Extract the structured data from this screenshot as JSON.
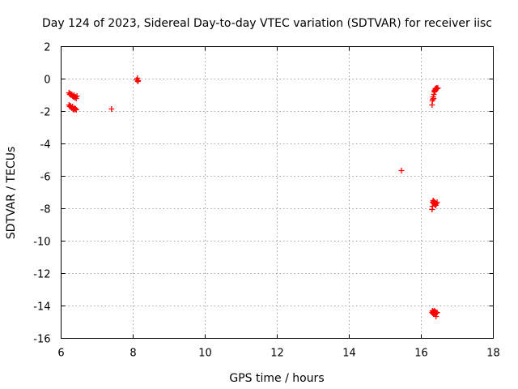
{
  "chart_data": {
    "type": "scatter",
    "title": "Day 124 of 2023, Sidereal Day-to-day VTEC variation (SDTVAR) for receiver iisc",
    "xlabel": "GPS time / hours",
    "ylabel": "SDTVAR / TECUs",
    "xlim": [
      6,
      18
    ],
    "ylim": [
      -16,
      2
    ],
    "xticks": [
      6,
      8,
      10,
      12,
      14,
      16,
      18
    ],
    "yticks": [
      2,
      0,
      -2,
      -4,
      -6,
      -8,
      -10,
      -12,
      -14,
      -16
    ],
    "grid": true,
    "marker": "+",
    "series": [
      {
        "color": "#ff0000",
        "points": [
          [
            6.22,
            -0.85
          ],
          [
            6.24,
            -0.95
          ],
          [
            6.26,
            -0.9
          ],
          [
            6.28,
            -1.0
          ],
          [
            6.3,
            -0.95
          ],
          [
            6.32,
            -1.05
          ],
          [
            6.34,
            -1.1
          ],
          [
            6.36,
            -1.0
          ],
          [
            6.38,
            -1.15
          ],
          [
            6.4,
            -1.1
          ],
          [
            6.42,
            -1.2
          ],
          [
            6.44,
            -1.05
          ],
          [
            6.22,
            -1.6
          ],
          [
            6.24,
            -1.7
          ],
          [
            6.26,
            -1.65
          ],
          [
            6.28,
            -1.75
          ],
          [
            6.3,
            -1.8
          ],
          [
            6.32,
            -1.7
          ],
          [
            6.34,
            -1.85
          ],
          [
            6.36,
            -1.9
          ],
          [
            6.38,
            -1.8
          ],
          [
            6.4,
            -1.85
          ],
          [
            6.42,
            -1.9
          ],
          [
            7.4,
            -1.85
          ],
          [
            8.1,
            -0.05
          ],
          [
            8.12,
            0.05
          ],
          [
            8.14,
            -0.1
          ],
          [
            8.13,
            -0.15
          ],
          [
            15.45,
            -5.65
          ],
          [
            16.3,
            -1.6
          ],
          [
            16.31,
            -1.35
          ],
          [
            16.32,
            -1.25
          ],
          [
            16.33,
            -1.1
          ],
          [
            16.34,
            -1.2
          ],
          [
            16.35,
            -0.95
          ],
          [
            16.36,
            -0.8
          ],
          [
            16.37,
            -0.7
          ],
          [
            16.38,
            -0.75
          ],
          [
            16.39,
            -0.6
          ],
          [
            16.4,
            -0.65
          ],
          [
            16.42,
            -0.55
          ],
          [
            16.44,
            -0.6
          ],
          [
            16.46,
            -0.55
          ],
          [
            16.3,
            -8.05
          ],
          [
            16.31,
            -7.85
          ],
          [
            16.32,
            -7.6
          ],
          [
            16.33,
            -7.5
          ],
          [
            16.34,
            -7.65
          ],
          [
            16.35,
            -7.55
          ],
          [
            16.36,
            -7.7
          ],
          [
            16.37,
            -7.6
          ],
          [
            16.38,
            -7.75
          ],
          [
            16.39,
            -7.65
          ],
          [
            16.4,
            -7.8
          ],
          [
            16.42,
            -7.7
          ],
          [
            16.44,
            -7.6
          ],
          [
            16.3,
            -14.4
          ],
          [
            16.31,
            -14.3
          ],
          [
            16.32,
            -14.45
          ],
          [
            16.33,
            -14.35
          ],
          [
            16.34,
            -14.5
          ],
          [
            16.35,
            -14.4
          ],
          [
            16.36,
            -14.3
          ],
          [
            16.37,
            -14.45
          ],
          [
            16.38,
            -14.5
          ],
          [
            16.39,
            -14.35
          ],
          [
            16.4,
            -14.4
          ],
          [
            16.41,
            -14.65
          ],
          [
            16.42,
            -14.45
          ],
          [
            16.44,
            -14.4
          ]
        ]
      }
    ]
  }
}
